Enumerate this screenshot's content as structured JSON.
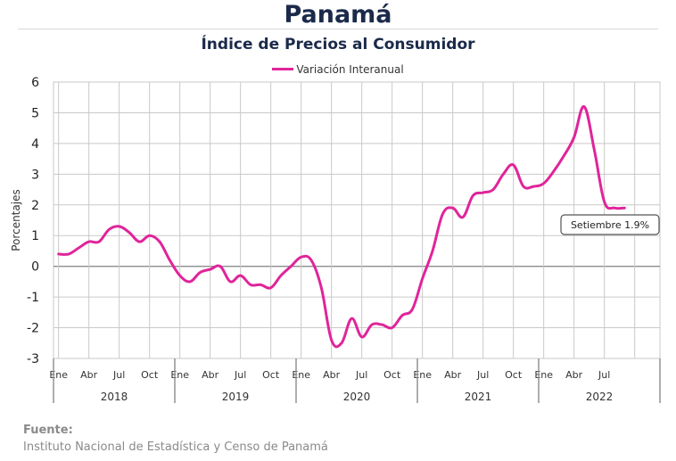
{
  "title": "Panamá",
  "subtitle": "Índice de Precios al Consumidor",
  "legend": {
    "series_name": "Variación Interanual"
  },
  "source": {
    "label": "Fuente:",
    "text": "Instituto Nacional de Estadística y Censo de Panamá"
  },
  "colors": {
    "series": "#e0249a",
    "grid": "#c9c9c9",
    "zero_line": "#8c8c8c",
    "title": "#1b2a4a"
  },
  "chart_data": {
    "type": "line",
    "title": "Índice de Precios al Consumidor",
    "xlabel": "",
    "ylabel": "Porcentajes",
    "ylim": [
      -3,
      6
    ],
    "yticks": [
      "6",
      "5",
      "4",
      "3",
      "2",
      "1",
      "0",
      "-1",
      "-2",
      "-3"
    ],
    "grid": true,
    "legend_position": "top-center",
    "month_labels": [
      "Ene",
      "Abr",
      "Jul",
      "Oct"
    ],
    "month_labels_2022": [
      "Ene",
      "Abr",
      "Jul"
    ],
    "years": [
      "2018",
      "2019",
      "2020",
      "2021",
      "2022"
    ],
    "series": [
      {
        "name": "Variación Interanual",
        "x": [
          "2018-01",
          "2018-02",
          "2018-03",
          "2018-04",
          "2018-05",
          "2018-06",
          "2018-07",
          "2018-08",
          "2018-09",
          "2018-10",
          "2018-11",
          "2018-12",
          "2019-01",
          "2019-02",
          "2019-03",
          "2019-04",
          "2019-05",
          "2019-06",
          "2019-07",
          "2019-08",
          "2019-09",
          "2019-10",
          "2019-11",
          "2019-12",
          "2020-01",
          "2020-02",
          "2020-03",
          "2020-04",
          "2020-05",
          "2020-06",
          "2020-07",
          "2020-08",
          "2020-09",
          "2020-10",
          "2020-11",
          "2020-12",
          "2021-01",
          "2021-02",
          "2021-03",
          "2021-04",
          "2021-05",
          "2021-06",
          "2021-07",
          "2021-08",
          "2021-09",
          "2021-10",
          "2021-11",
          "2021-12",
          "2022-01",
          "2022-02",
          "2022-03",
          "2022-04",
          "2022-05",
          "2022-06",
          "2022-07",
          "2022-08",
          "2022-09"
        ],
        "values": [
          0.4,
          0.4,
          0.6,
          0.8,
          0.8,
          1.2,
          1.3,
          1.1,
          0.8,
          1.0,
          0.8,
          0.2,
          -0.3,
          -0.5,
          -0.2,
          -0.1,
          0.0,
          -0.5,
          -0.3,
          -0.6,
          -0.6,
          -0.7,
          -0.3,
          0.0,
          0.3,
          0.2,
          -0.7,
          -2.4,
          -2.5,
          -1.7,
          -2.3,
          -1.9,
          -1.9,
          -2.0,
          -1.6,
          -1.4,
          -0.4,
          0.5,
          1.7,
          1.9,
          1.6,
          2.3,
          2.4,
          2.5,
          3.0,
          3.3,
          2.6,
          2.6,
          2.7,
          3.1,
          3.6,
          4.2,
          5.2,
          3.8,
          2.1,
          1.9,
          1.9
        ]
      }
    ],
    "annotation": "Setiembre 1.9%"
  }
}
